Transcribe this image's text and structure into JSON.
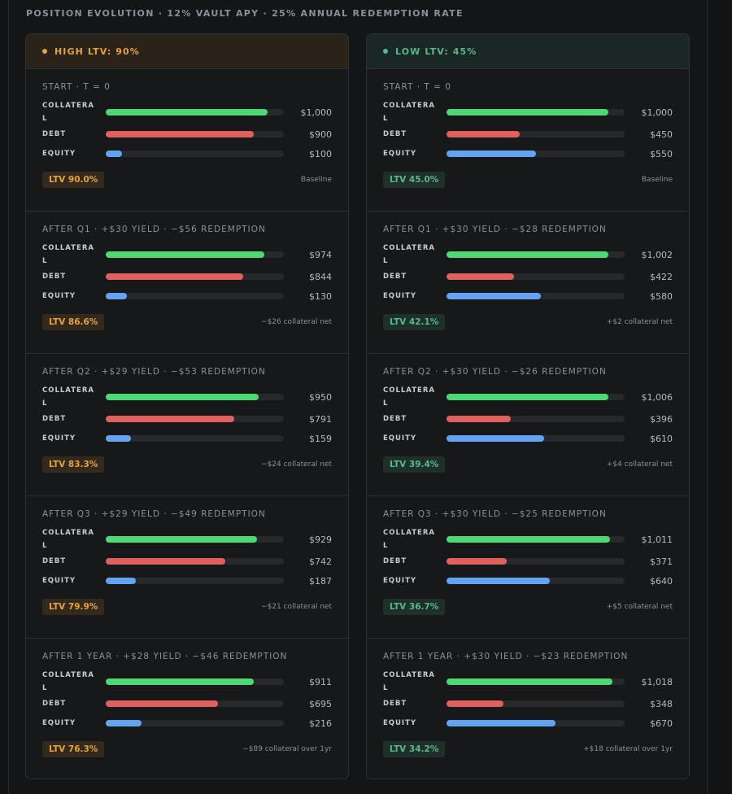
{
  "heading": "POSITION EVOLUTION · 12% VAULT APY · 25% ANNUAL REDEMPTION RATE",
  "labels": {
    "collateral": "COLLATERAL",
    "debt": "DEBT",
    "equity": "EQUITY"
  },
  "colors": {
    "collateral": "#4ed873",
    "debt": "#e0605d",
    "equity": "#62a3f3",
    "high_accent": "#e6a23c",
    "low_accent": "#58b88a"
  },
  "panels": [
    {
      "title": "HIGH LTV: 90%",
      "sections": [
        {
          "title": "START · T = 0",
          "collateral": "$1,000",
          "debt": "$900",
          "equity": "$100",
          "ltv": "LTV 90.0%",
          "note": "Baseline",
          "fill": {
            "collateral": 0.91,
            "debt": 0.83,
            "equity": 0.09
          }
        },
        {
          "title": "AFTER Q1 · +$30 YIELD · −$56 REDEMPTION",
          "collateral": "$974",
          "debt": "$844",
          "equity": "$130",
          "ltv": "LTV 86.6%",
          "note": "−$26 collateral net",
          "fill": {
            "collateral": 0.89,
            "debt": 0.77,
            "equity": 0.12
          }
        },
        {
          "title": "AFTER Q2 · +$29 YIELD · −$53 REDEMPTION",
          "collateral": "$950",
          "debt": "$791",
          "equity": "$159",
          "ltv": "LTV 83.3%",
          "note": "−$24 collateral net",
          "fill": {
            "collateral": 0.86,
            "debt": 0.72,
            "equity": 0.14
          }
        },
        {
          "title": "AFTER Q3 · +$29 YIELD · −$49 REDEMPTION",
          "collateral": "$929",
          "debt": "$742",
          "equity": "$187",
          "ltv": "LTV 79.9%",
          "note": "−$21 collateral net",
          "fill": {
            "collateral": 0.85,
            "debt": 0.67,
            "equity": 0.17
          }
        },
        {
          "title": "AFTER 1 YEAR · +$28 YIELD · −$46 REDEMPTION",
          "collateral": "$911",
          "debt": "$695",
          "equity": "$216",
          "ltv": "LTV 76.3%",
          "note": "−$89 collateral over 1yr",
          "fill": {
            "collateral": 0.83,
            "debt": 0.63,
            "equity": 0.2
          }
        }
      ]
    },
    {
      "title": "LOW LTV: 45%",
      "sections": [
        {
          "title": "START · T = 0",
          "collateral": "$1,000",
          "debt": "$450",
          "equity": "$550",
          "ltv": "LTV 45.0%",
          "note": "Baseline",
          "fill": {
            "collateral": 0.91,
            "debt": 0.41,
            "equity": 0.5
          }
        },
        {
          "title": "AFTER Q1 · +$30 YIELD · −$28 REDEMPTION",
          "collateral": "$1,002",
          "debt": "$422",
          "equity": "$580",
          "ltv": "LTV 42.1%",
          "note": "+$2 collateral net",
          "fill": {
            "collateral": 0.91,
            "debt": 0.38,
            "equity": 0.53
          }
        },
        {
          "title": "AFTER Q2 · +$30 YIELD · −$26 REDEMPTION",
          "collateral": "$1,006",
          "debt": "$396",
          "equity": "$610",
          "ltv": "LTV 39.4%",
          "note": "+$4 collateral net",
          "fill": {
            "collateral": 0.91,
            "debt": 0.36,
            "equity": 0.55
          }
        },
        {
          "title": "AFTER Q3 · +$30 YIELD · −$25 REDEMPTION",
          "collateral": "$1,011",
          "debt": "$371",
          "equity": "$640",
          "ltv": "LTV 36.7%",
          "note": "+$5 collateral net",
          "fill": {
            "collateral": 0.92,
            "debt": 0.34,
            "equity": 0.58
          }
        },
        {
          "title": "AFTER 1 YEAR · +$30 YIELD · −$23 REDEMPTION",
          "collateral": "$1,018",
          "debt": "$348",
          "equity": "$670",
          "ltv": "LTV 34.2%",
          "note": "+$18 collateral over 1yr",
          "fill": {
            "collateral": 0.93,
            "debt": 0.32,
            "equity": 0.61
          }
        }
      ]
    }
  ]
}
